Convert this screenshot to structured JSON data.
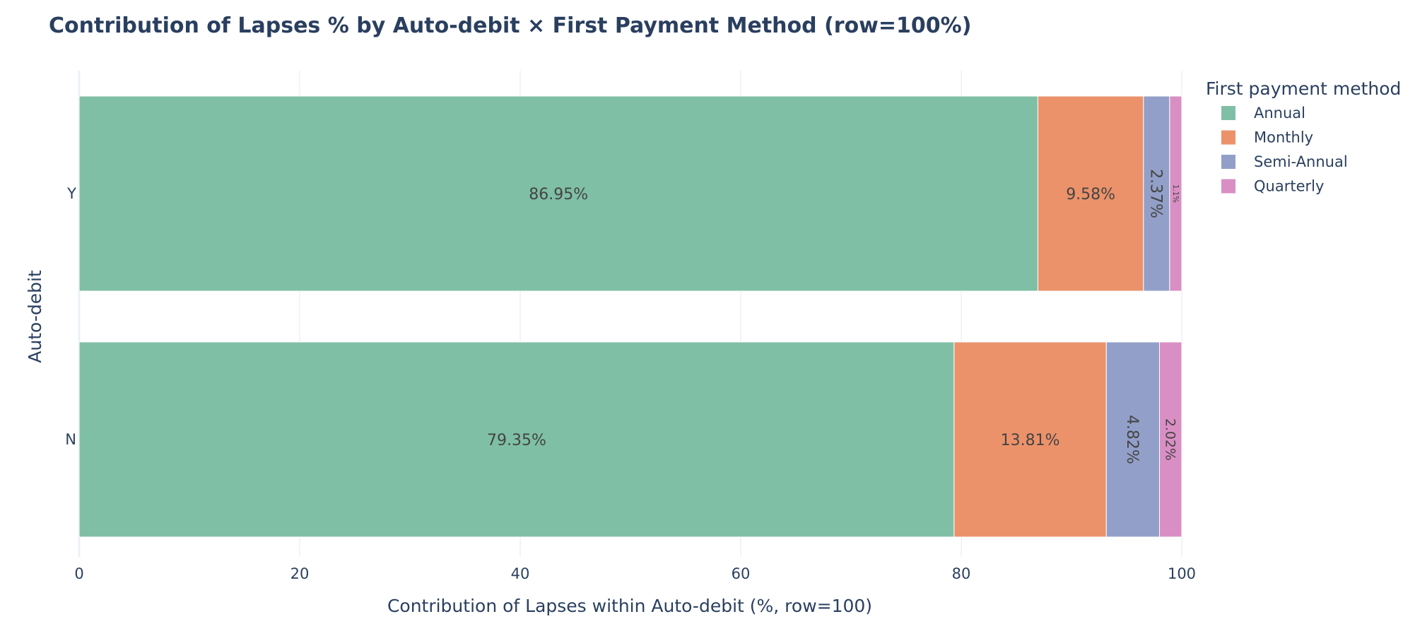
{
  "chart_data": {
    "type": "bar",
    "orientation": "horizontal",
    "barmode": "stack",
    "title": "Contribution of Lapses % by Auto-debit × First Payment Method (row=100%)",
    "xlabel": "Contribution of Lapses within Auto-debit (%, row=100)",
    "ylabel": "Auto-debit",
    "xlim": [
      0,
      100
    ],
    "xticks": [
      0,
      20,
      40,
      60,
      80,
      100
    ],
    "grid": true,
    "categories": [
      "Y",
      "N"
    ],
    "legend": {
      "title": "First payment method",
      "placement": "top-right"
    },
    "series": [
      {
        "name": "Annual",
        "color": "#7fbfa6",
        "values": [
          86.95,
          79.35
        ],
        "labels": [
          "86.95%",
          "79.35%"
        ]
      },
      {
        "name": "Monthly",
        "color": "#eb926b",
        "values": [
          9.58,
          13.81
        ],
        "labels": [
          "9.58%",
          "13.81%"
        ]
      },
      {
        "name": "Semi-Annual",
        "color": "#929fc8",
        "values": [
          2.37,
          4.82
        ],
        "labels": [
          "2.37%",
          "4.82%"
        ]
      },
      {
        "name": "Quarterly",
        "color": "#d98fc4",
        "values": [
          1.1,
          2.02
        ],
        "labels": [
          "1.1%",
          "2.02%"
        ]
      }
    ]
  }
}
